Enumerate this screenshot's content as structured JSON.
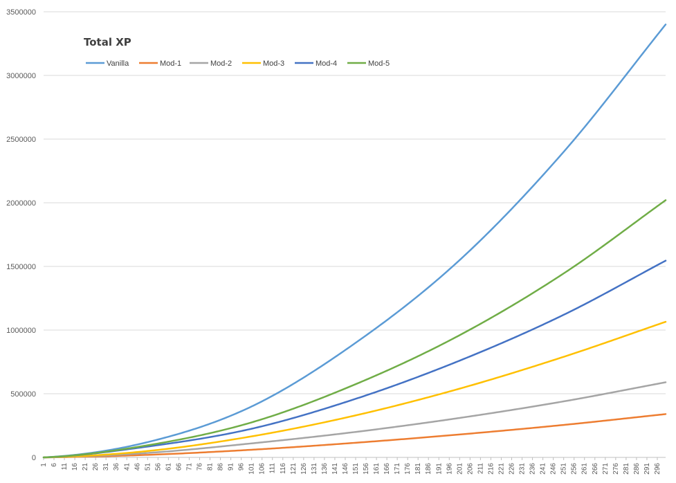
{
  "chart_data": {
    "type": "line",
    "title": "Total XP",
    "xlabel": "",
    "ylabel": "",
    "x_range": [
      1,
      300
    ],
    "x_tick_labels": [
      "1",
      "6",
      "11",
      "16",
      "21",
      "26",
      "31",
      "36",
      "41",
      "46",
      "51",
      "56",
      "61",
      "66",
      "71",
      "76",
      "81",
      "86",
      "91",
      "96",
      "101",
      "106",
      "111",
      "116",
      "121",
      "126",
      "131",
      "136",
      "141",
      "146",
      "151",
      "156",
      "161",
      "166",
      "171",
      "176",
      "181",
      "186",
      "191",
      "196",
      "201",
      "206",
      "211",
      "216",
      "221",
      "226",
      "231",
      "236",
      "241",
      "246",
      "251",
      "256",
      "261",
      "266",
      "271",
      "276",
      "281",
      "286",
      "291",
      "296"
    ],
    "y_ticks": [
      0,
      500000,
      1000000,
      1500000,
      2000000,
      2500000,
      3000000,
      3500000
    ],
    "y_tick_labels": [
      "0",
      "500000",
      "1000000",
      "1500000",
      "2000000",
      "2500000",
      "3000000",
      "3500000"
    ],
    "ylim": [
      0,
      3500000
    ],
    "grid": "horizontal",
    "legend_position": "top-left",
    "x_sample": [
      1,
      51,
      101,
      151,
      201,
      251,
      300
    ],
    "series": [
      {
        "name": "Vanilla",
        "color": "#5B9BD5",
        "values": [
          0,
          120000,
          400000,
          900000,
          1550000,
          2400000,
          3400000
        ]
      },
      {
        "name": "Mod-1",
        "color": "#ED7D31",
        "values": [
          0,
          20000,
          60000,
          115000,
          180000,
          255000,
          340000
        ]
      },
      {
        "name": "Mod-2",
        "color": "#A5A5A5",
        "values": [
          0,
          35000,
          110000,
          200000,
          310000,
          440000,
          590000
        ]
      },
      {
        "name": "Mod-3",
        "color": "#FFC000",
        "values": [
          0,
          50000,
          165000,
          330000,
          540000,
          790000,
          1065000
        ]
      },
      {
        "name": "Mod-4",
        "color": "#4472C4",
        "values": [
          0,
          85000,
          225000,
          460000,
          760000,
          1120000,
          1545000
        ]
      },
      {
        "name": "Mod-5",
        "color": "#70AD47",
        "values": [
          0,
          95000,
          275000,
          575000,
          960000,
          1445000,
          2020000
        ]
      }
    ]
  }
}
